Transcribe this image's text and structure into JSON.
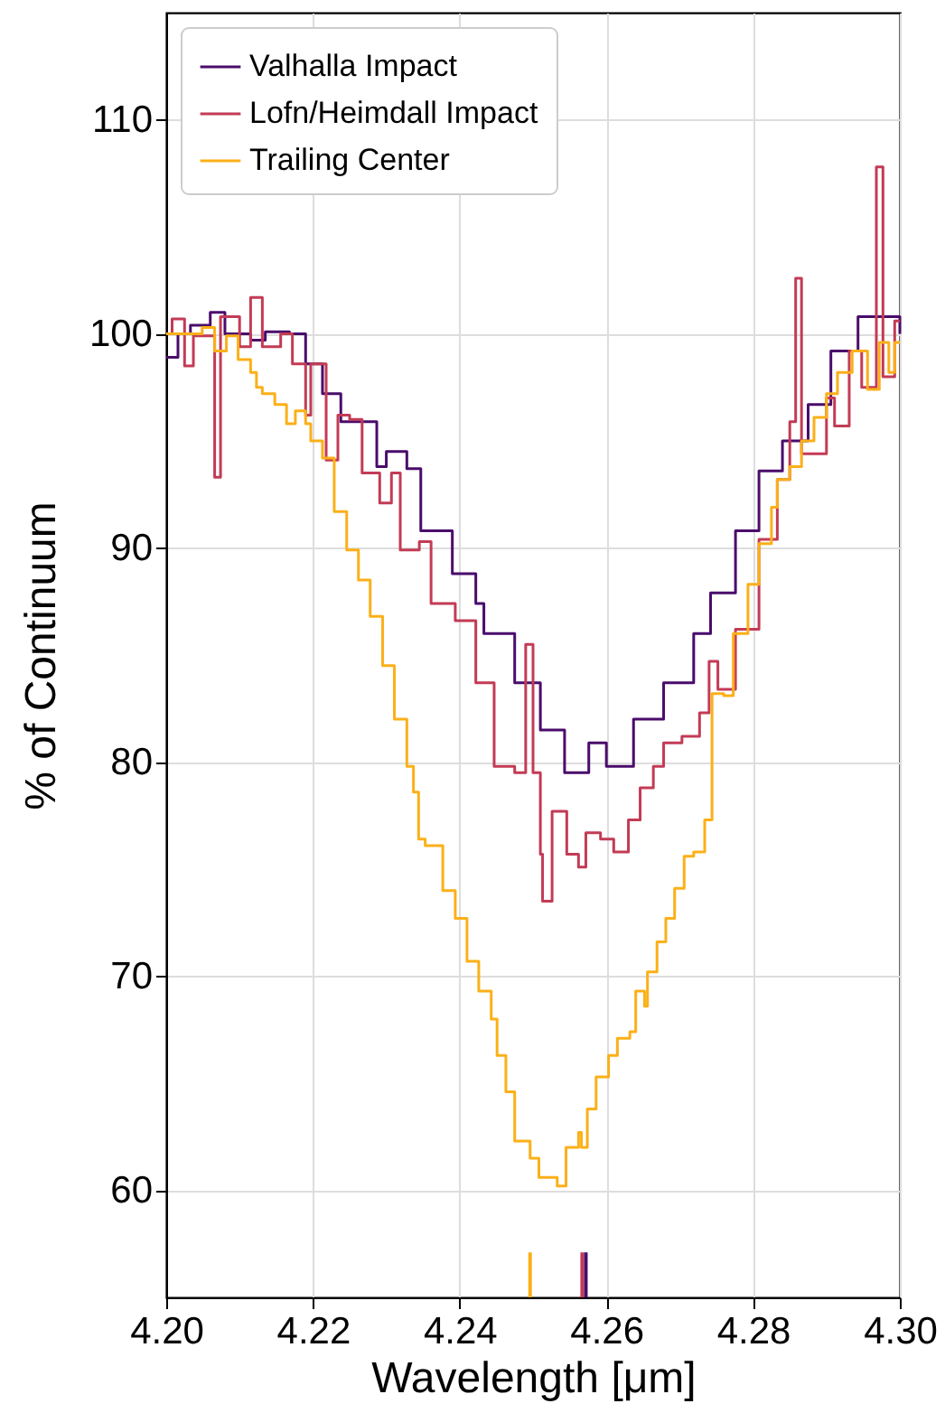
{
  "chart_data": {
    "type": "step",
    "xlabel": "Wavelength [μm]",
    "ylabel": "% of Continuum",
    "xlim": [
      4.2,
      4.3
    ],
    "ylim": [
      55,
      115
    ],
    "xticks": [
      {
        "value": 4.2,
        "label": "4.20"
      },
      {
        "value": 4.22,
        "label": "4.22"
      },
      {
        "value": 4.24,
        "label": "4.24"
      },
      {
        "value": 4.26,
        "label": "4.26"
      },
      {
        "value": 4.28,
        "label": "4.28"
      },
      {
        "value": 4.3,
        "label": "4.30"
      }
    ],
    "yticks": [
      60,
      70,
      80,
      90,
      100,
      110
    ],
    "grid": true,
    "legend": "top left",
    "marker": "none",
    "line_style": "solid",
    "series": [
      {
        "type": "bar",
        "x": [
          4.2496,
          4.2567,
          4.2572
        ],
        "values": [
          57.1,
          57.1,
          57.1
        ],
        "colors": [
          "#fbb018",
          "#c33b55",
          "#4a0c6b"
        ]
      },
      {
        "name": "Valhalla Impact",
        "color": "#4a0c6b",
        "x": [
          4.2,
          4.2016,
          4.2033,
          4.206,
          4.208,
          4.2115,
          4.2135,
          4.2168,
          4.219,
          4.2213,
          4.2238,
          4.2271,
          4.2287,
          4.23,
          4.2328,
          4.2347,
          4.2369,
          4.239,
          4.2422,
          4.2433,
          4.2475,
          4.251,
          4.2543,
          4.2576,
          4.26,
          4.2637,
          4.2678,
          4.2719,
          4.2742,
          4.2776,
          4.2808,
          4.284,
          4.2875,
          4.2906,
          4.2943,
          4.298,
          4.3
        ],
        "values": [
          98.9,
          100,
          100.4,
          101,
          100,
          99.7,
          100.1,
          100,
          98.6,
          97.2,
          95.9,
          95.9,
          93.8,
          94.5,
          93.7,
          90.8,
          90.8,
          88.8,
          87.4,
          86,
          83.7,
          81.5,
          79.5,
          80.9,
          79.8,
          82,
          83.7,
          86,
          87.9,
          90.8,
          93.6,
          95,
          96.7,
          99.2,
          100.8,
          100.8,
          100
        ]
      },
      {
        "name": "Lofn/Heimdall Impact",
        "color": "#c33b55",
        "x": [
          4.2,
          4.2008,
          4.2025,
          4.2037,
          4.2066,
          4.2074,
          4.2082,
          4.21,
          4.2115,
          4.2131,
          4.2156,
          4.2172,
          4.219,
          4.2197,
          4.2218,
          4.2234,
          4.225,
          4.2267,
          4.2291,
          4.2307,
          4.2319,
          4.2345,
          4.2361,
          4.2382,
          4.2394,
          4.2422,
          4.2447,
          4.2475,
          4.249,
          4.25,
          4.251,
          4.2513,
          4.2526,
          4.2546,
          4.2562,
          4.2572,
          4.2592,
          4.261,
          4.263,
          4.2646,
          4.2664,
          4.2678,
          4.2703,
          4.2727,
          4.274,
          4.2752,
          4.2776,
          4.2808,
          4.2833,
          4.285,
          4.2858,
          4.2866,
          4.287,
          4.29,
          4.2911,
          4.2931,
          4.2948,
          4.2968,
          4.2977,
          4.2993,
          4.3
        ],
        "values": [
          100,
          100.7,
          98.5,
          99.9,
          93.3,
          100.8,
          100.8,
          99.4,
          101.7,
          99.4,
          100,
          98.6,
          96.2,
          98.6,
          94.1,
          96.2,
          96,
          93.5,
          92.1,
          93.5,
          89.9,
          90.3,
          87.4,
          87.4,
          86.6,
          83.7,
          79.8,
          79.5,
          85.5,
          79.5,
          75.7,
          73.5,
          77.7,
          75.7,
          75.1,
          76.7,
          76.4,
          75.8,
          77.3,
          78.8,
          79.8,
          80.9,
          81.2,
          82.3,
          84.7,
          83.4,
          86.2,
          90.4,
          93.2,
          95.9,
          102.6,
          94.4,
          94.4,
          97,
          95.7,
          99.2,
          97.5,
          107.8,
          98,
          100.6,
          100.6
        ]
      },
      {
        "name": "Trailing Center",
        "color": "#fbb018",
        "x": [
          4.2,
          4.2049,
          4.2066,
          4.2082,
          4.2098,
          4.2115,
          4.2123,
          4.2131,
          4.2148,
          4.2164,
          4.2176,
          4.219,
          4.2197,
          4.2205,
          4.2213,
          4.2229,
          4.2246,
          4.2262,
          4.2278,
          4.2295,
          4.2311,
          4.2328,
          4.2337,
          4.2344,
          4.2353,
          4.2377,
          4.2394,
          4.241,
          4.2426,
          4.2443,
          4.2451,
          4.2463,
          4.2475,
          4.2496,
          4.2508,
          4.2533,
          4.2545,
          4.2562,
          4.2566,
          4.2574,
          4.2586,
          4.2603,
          4.2615,
          4.2632,
          4.264,
          4.2652,
          4.2656,
          4.2669,
          4.2681,
          4.2693,
          4.2706,
          4.2719,
          4.2734,
          4.2744,
          4.276,
          4.2773,
          4.2793,
          4.2808,
          4.2825,
          4.2833,
          4.285,
          4.2866,
          4.2883,
          4.29,
          4.2915,
          4.2935,
          4.2956,
          4.2972,
          4.2985,
          4.2993,
          4.3
        ],
        "values": [
          100,
          100.3,
          99.2,
          99.9,
          98.8,
          98.2,
          97.5,
          97.2,
          96.7,
          95.8,
          96.4,
          95.8,
          95,
          95,
          94.2,
          91.7,
          89.9,
          88.5,
          86.8,
          84.5,
          82,
          79.8,
          78.6,
          76.4,
          76.1,
          74,
          72.7,
          70.7,
          69.3,
          68,
          66.3,
          64.6,
          62.3,
          61.5,
          60.6,
          60.2,
          62,
          62.7,
          62,
          63.8,
          65.3,
          66.3,
          67.1,
          67.4,
          69.3,
          68.6,
          70.2,
          71.6,
          72.7,
          74.1,
          75.6,
          75.8,
          77.3,
          83.2,
          83.1,
          86,
          88.3,
          90.2,
          91.9,
          93.2,
          93.8,
          95,
          96.1,
          97.2,
          98.2,
          99.2,
          97.4,
          99.6,
          98.2,
          99.6,
          99.6
        ]
      }
    ]
  }
}
